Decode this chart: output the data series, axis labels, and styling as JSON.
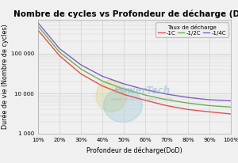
{
  "title": "Nombre de cycles vs Profondeur de décharge (DoD)",
  "xlabel": "Profondeur de décharge(DoD)",
  "ylabel": "Durée de vie (Nombre de cycles)",
  "legend_title": "Taux de décharge",
  "legend_labels": [
    "-1C",
    "-1/2C",
    "-1/4C"
  ],
  "line_colors": [
    "#e05050",
    "#70b050",
    "#8060c0"
  ],
  "dod_values": [
    10,
    20,
    30,
    40,
    50,
    60,
    70,
    80,
    90,
    100
  ],
  "cycles_1C": [
    380000,
    88000,
    31000,
    15500,
    9500,
    6800,
    5000,
    4000,
    3500,
    3100
  ],
  "cycles_half": [
    480000,
    108000,
    41000,
    20500,
    13000,
    9200,
    7000,
    5800,
    5000,
    4600
  ],
  "cycles_quarter": [
    580000,
    132000,
    52000,
    27000,
    17500,
    12500,
    9700,
    8000,
    7000,
    6600
  ],
  "xtick_labels": [
    "10%",
    "20%",
    "30%",
    "40%",
    "50%",
    "60%",
    "70%",
    "80%",
    "90%",
    "100%"
  ],
  "ytick_values": [
    1000,
    10000,
    100000
  ],
  "ytick_labels": [
    "1 000",
    "10 000",
    "100 000"
  ],
  "ylim": [
    1000,
    700000
  ],
  "background_color": "#f0f0f0",
  "grid_color": "#d0d0d0",
  "title_fontsize": 7.5,
  "label_fontsize": 5.8,
  "tick_fontsize": 5.0,
  "legend_fontsize": 5.0
}
